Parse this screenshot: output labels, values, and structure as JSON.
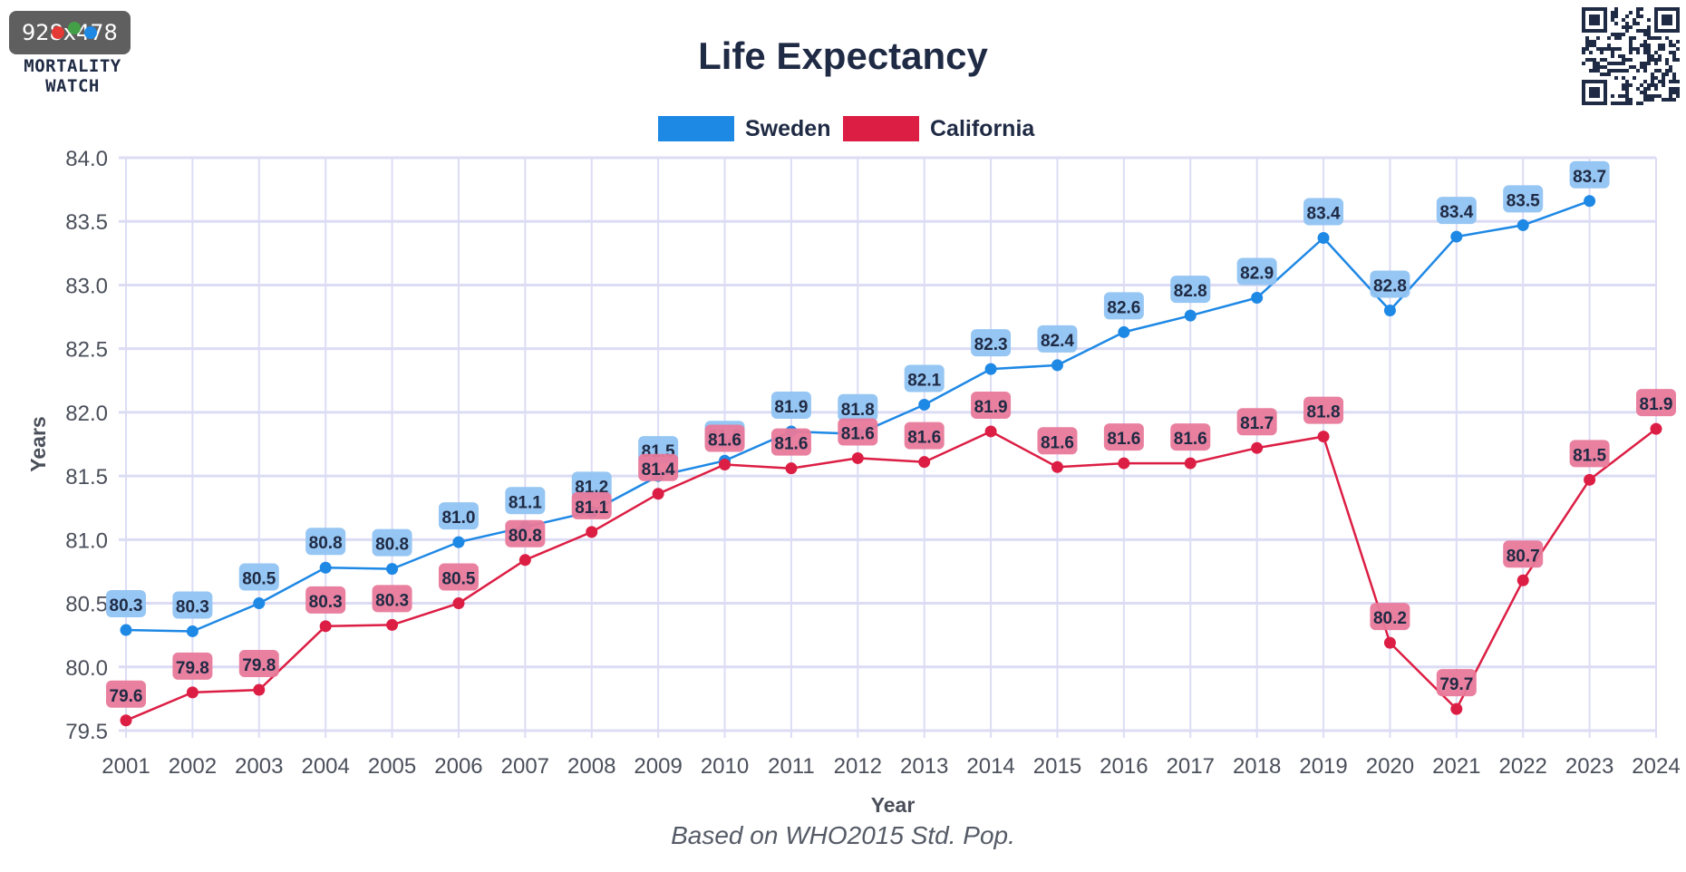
{
  "badge": "928x478",
  "logo": {
    "line1": "MORTALITY",
    "line2": "WATCH"
  },
  "chart_data": {
    "type": "line",
    "title": "Life Expectancy",
    "subtitle": "Based on WHO2015 Std. Pop.",
    "xlabel": "Year",
    "ylabel": "Years",
    "x": [
      "2001",
      "2002",
      "2003",
      "2004",
      "2005",
      "2006",
      "2007",
      "2008",
      "2009",
      "2010",
      "2011",
      "2012",
      "2013",
      "2014",
      "2015",
      "2016",
      "2017",
      "2018",
      "2019",
      "2020",
      "2021",
      "2022",
      "2023",
      "2024"
    ],
    "ylim": [
      79.5,
      84.0
    ],
    "yticks": [
      "79.5",
      "80.0",
      "80.5",
      "81.0",
      "81.5",
      "82.0",
      "82.5",
      "83.0",
      "83.5",
      "84.0"
    ],
    "grid": true,
    "legend_position": "top-center",
    "series": [
      {
        "name": "Sweden",
        "color": "#1e88e5",
        "label_bg": "#90c3f2",
        "values": [
          80.29,
          80.28,
          80.5,
          80.78,
          80.77,
          80.98,
          81.1,
          81.22,
          81.5,
          81.62,
          81.85,
          81.83,
          82.06,
          82.34,
          82.37,
          82.63,
          82.76,
          82.9,
          83.37,
          82.8,
          83.38,
          83.47,
          83.66,
          null
        ],
        "labels": [
          "80.3",
          "80.3",
          "80.5",
          "80.8",
          "80.8",
          "81.0",
          "81.1",
          "81.2",
          "81.5",
          "81.6",
          "81.9",
          "81.8",
          "82.1",
          "82.3",
          "82.4",
          "82.6",
          "82.8",
          "82.9",
          "83.4",
          "82.8",
          "83.4",
          "83.5",
          "83.7",
          null
        ]
      },
      {
        "name": "California",
        "color": "#dc1e44",
        "label_bg": "#e8799a",
        "values": [
          79.58,
          79.8,
          79.82,
          80.32,
          80.33,
          80.5,
          80.84,
          81.06,
          81.36,
          81.59,
          81.56,
          81.64,
          81.61,
          81.85,
          81.57,
          81.6,
          81.6,
          81.72,
          81.81,
          80.19,
          79.67,
          80.68,
          81.47,
          81.87
        ],
        "labels": [
          "79.6",
          "79.8",
          "79.8",
          "80.3",
          "80.3",
          "80.5",
          "80.8",
          "81.1",
          "81.4",
          "81.6",
          "81.6",
          "81.6",
          "81.6",
          "81.9",
          "81.6",
          "81.6",
          "81.6",
          "81.7",
          "81.8",
          "80.2",
          "79.7",
          "80.7",
          "81.5",
          "81.9"
        ]
      }
    ]
  }
}
